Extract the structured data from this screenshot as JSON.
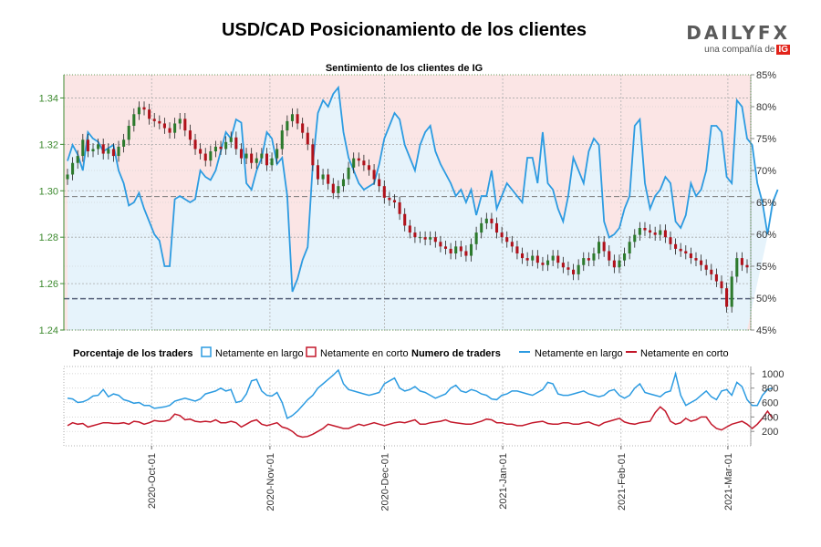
{
  "header": {
    "title": "USD/CAD Posicionamiento de los clientes",
    "logo": "DAILYFX",
    "logo_sub": "una compañía de",
    "logo_badge": "IG"
  },
  "colors": {
    "long": "#2c9be1",
    "short": "#c3172a",
    "candle_up": "#2d7a2d",
    "candle_down": "#b0121b",
    "bg_short": "#fbe5e5",
    "bg_long": "#e6f3fb",
    "axis_green": "#3d8a2f"
  },
  "chart_data": [
    {
      "type": "line",
      "title": "Sentimiento de los clientes de IG",
      "price_ylim": [
        1.24,
        1.35
      ],
      "price_ticks": [
        "1.24",
        "1.26",
        "1.28",
        "1.30",
        "1.32",
        "1.34"
      ],
      "pct_ylim": [
        45,
        85
      ],
      "pct_ticks": [
        "45%",
        "50%",
        "55%",
        "60%",
        "65%",
        "70%",
        "75%",
        "80%",
        "85%"
      ],
      "ref_lines": [
        1.2975,
        1.2535
      ],
      "x_ticks": [
        "2020-Oct-01",
        "2020-Nov-01",
        "2020-Dec-01",
        "2021-Jan-01",
        "2021-Feb-01",
        "2021-Mar-01"
      ],
      "x_tick_days": [
        23,
        54,
        84,
        115,
        146,
        174
      ],
      "price_close": [
        1.307,
        1.312,
        1.315,
        1.322,
        1.317,
        1.318,
        1.32,
        1.316,
        1.318,
        1.315,
        1.319,
        1.322,
        1.328,
        1.333,
        1.336,
        1.335,
        1.331,
        1.33,
        1.329,
        1.327,
        1.325,
        1.329,
        1.331,
        1.326,
        1.322,
        1.318,
        1.316,
        1.313,
        1.317,
        1.319,
        1.318,
        1.321,
        1.323,
        1.318,
        1.314,
        1.316,
        1.312,
        1.314,
        1.316,
        1.311,
        1.314,
        1.318,
        1.326,
        1.33,
        1.333,
        1.329,
        1.325,
        1.32,
        1.311,
        1.305,
        1.307,
        1.303,
        1.299,
        1.302,
        1.305,
        1.31,
        1.314,
        1.313,
        1.311,
        1.309,
        1.305,
        1.302,
        1.297,
        1.296,
        1.295,
        1.29,
        1.285,
        1.282,
        1.28,
        1.28,
        1.279,
        1.28,
        1.278,
        1.276,
        1.275,
        1.273,
        1.276,
        1.274,
        1.272,
        1.277,
        1.282,
        1.286,
        1.288,
        1.286,
        1.282,
        1.28,
        1.278,
        1.276,
        1.273,
        1.271,
        1.27,
        1.272,
        1.269,
        1.268,
        1.27,
        1.272,
        1.269,
        1.267,
        1.266,
        1.264,
        1.268,
        1.271,
        1.27,
        1.273,
        1.278,
        1.274,
        1.27,
        1.267,
        1.27,
        1.273,
        1.278,
        1.281,
        1.284,
        1.283,
        1.282,
        1.281,
        1.283,
        1.28,
        1.277,
        1.275,
        1.274,
        1.273,
        1.271,
        1.27,
        1.268,
        1.266,
        1.264,
        1.261,
        1.258,
        1.25,
        1.263,
        1.271,
        1.268,
        1.267
      ],
      "pct_long": [
        71.5,
        74.0,
        72.5,
        70.0,
        76.0,
        75.0,
        74.5,
        73.0,
        73.5,
        74.0,
        70.0,
        68.0,
        64.5,
        65.0,
        66.5,
        64.0,
        62.0,
        60.0,
        59.0,
        55.0,
        55.0,
        65.5,
        66.0,
        65.5,
        65.0,
        65.5,
        70.0,
        69.0,
        68.5,
        70.0,
        73.0,
        76.0,
        75.0,
        78.0,
        77.5,
        68.0,
        67.0,
        70.0,
        72.0,
        76.0,
        75.0,
        71.0,
        72.0,
        66.0,
        51.0,
        53.0,
        56.0,
        58.0,
        71.0,
        79.0,
        81.0,
        80.0,
        82.0,
        83.0,
        76.0,
        72.0,
        70.0,
        68.0,
        67.0,
        67.5,
        68.0,
        71.0,
        75.0,
        77.0,
        79.0,
        78.0,
        74.0,
        72.0,
        70.0,
        74.0,
        76.0,
        77.0,
        73.0,
        71.0,
        69.5,
        68.0,
        66.0,
        67.0,
        65.0,
        67.0,
        63.0,
        66.0,
        66.0,
        70.0,
        64.0,
        66.0,
        68.0,
        67.0,
        66.0,
        65.0,
        72.0,
        72.0,
        68.0,
        76.0,
        68.0,
        67.0,
        64.0,
        62.0,
        66.0,
        72.0,
        70.0,
        68.0,
        73.0,
        75.0,
        74.0,
        62.0,
        59.5,
        60.0,
        61.0,
        64.0,
        66.0,
        77.0,
        78.0,
        68.0,
        64.0,
        66.0,
        67.0,
        69.0,
        68.0,
        62.0,
        61.0,
        63.0,
        68.0,
        66.0,
        67.0,
        70.0,
        77.0,
        77.0,
        76.0,
        69.0,
        68.0,
        81.0,
        80.0,
        75.0,
        74.0,
        68.0,
        65.0,
        60.0,
        65.0,
        67.0
      ],
      "traders_ylim": [
        0,
        1100
      ],
      "traders_ticks": [
        "200",
        "400",
        "600",
        "800",
        "1000"
      ],
      "traders_long": [
        660,
        650,
        600,
        610,
        640,
        690,
        700,
        780,
        680,
        720,
        700,
        640,
        620,
        590,
        600,
        560,
        560,
        520,
        530,
        540,
        560,
        620,
        640,
        660,
        640,
        620,
        650,
        720,
        740,
        760,
        800,
        760,
        780,
        600,
        620,
        720,
        900,
        920,
        760,
        700,
        690,
        740,
        600,
        380,
        420,
        480,
        560,
        640,
        700,
        800,
        860,
        920,
        980,
        1050,
        860,
        780,
        760,
        740,
        720,
        700,
        720,
        740,
        860,
        900,
        940,
        800,
        760,
        780,
        820,
        760,
        740,
        700,
        660,
        690,
        720,
        800,
        840,
        760,
        740,
        780,
        760,
        720,
        700,
        650,
        640,
        700,
        720,
        760,
        760,
        740,
        720,
        700,
        740,
        780,
        880,
        860,
        720,
        700,
        700,
        720,
        740,
        760,
        720,
        700,
        680,
        700,
        760,
        780,
        700,
        660,
        700,
        800,
        860,
        740,
        720,
        700,
        680,
        740,
        760,
        1000,
        700,
        560,
        600,
        640,
        700,
        760,
        680,
        640,
        760,
        780,
        700,
        880,
        820,
        640,
        560,
        560,
        700,
        780,
        800
      ],
      "traders_short": [
        280,
        320,
        300,
        310,
        260,
        280,
        300,
        320,
        320,
        310,
        310,
        320,
        300,
        340,
        330,
        300,
        320,
        350,
        340,
        340,
        360,
        440,
        420,
        360,
        370,
        340,
        330,
        340,
        330,
        360,
        320,
        320,
        340,
        320,
        260,
        300,
        340,
        360,
        300,
        280,
        300,
        320,
        260,
        240,
        200,
        140,
        120,
        130,
        160,
        200,
        240,
        300,
        280,
        260,
        240,
        240,
        270,
        300,
        280,
        300,
        320,
        300,
        280,
        300,
        320,
        330,
        320,
        340,
        360,
        300,
        300,
        320,
        330,
        340,
        360,
        330,
        320,
        310,
        300,
        300,
        320,
        340,
        370,
        360,
        320,
        320,
        300,
        300,
        280,
        280,
        300,
        320,
        330,
        340,
        310,
        300,
        300,
        320,
        320,
        300,
        300,
        320,
        330,
        300,
        280,
        320,
        340,
        360,
        380,
        330,
        310,
        300,
        320,
        330,
        340,
        460,
        540,
        480,
        340,
        300,
        320,
        380,
        340,
        360,
        400,
        400,
        300,
        240,
        220,
        260,
        300,
        320,
        340,
        300,
        240,
        300,
        380,
        480,
        380
      ]
    }
  ],
  "legend": {
    "pct_title": "Porcentaje de los traders",
    "pct_long_label": "Netamente en largo",
    "pct_short_label": "Netamente en corto",
    "num_title": "Numero de traders",
    "num_long_label": "Netamente en largo",
    "num_short_label": "Netamente en corto"
  }
}
